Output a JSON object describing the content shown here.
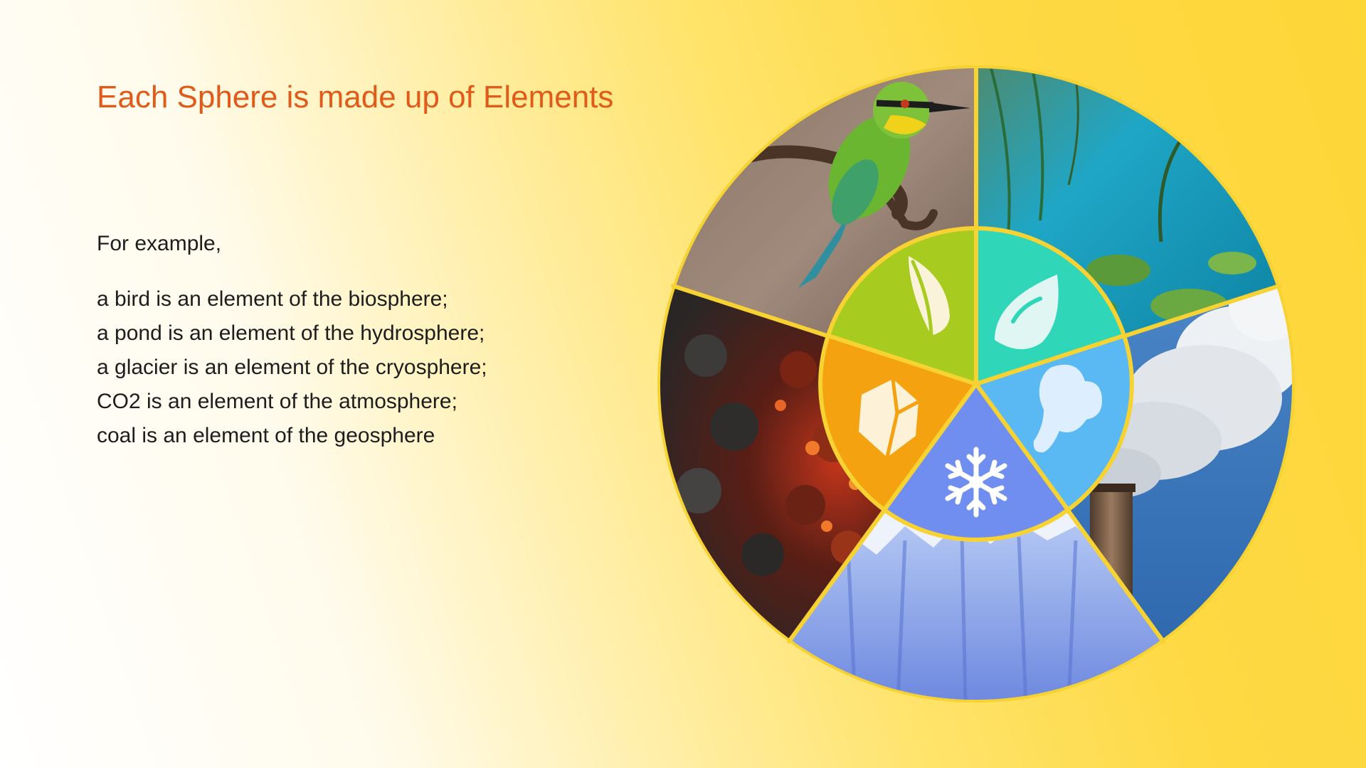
{
  "title": "Each Sphere is made up of Elements",
  "intro": "For example,",
  "examples": [
    "a bird is an element of the biosphere;",
    "a pond is an element of the hydrosphere;",
    "a glacier is an element of the cryosphere;",
    "CO2 is an element of the atmosphere;",
    "coal is an element of the geosphere"
  ],
  "colors": {
    "title": "#e05a1a",
    "background_start": "#ffffff",
    "background_end": "#fdd638",
    "divider": "#f7d233"
  },
  "spheres": [
    {
      "name": "biosphere",
      "icon": "leaf-icon",
      "photo": "bird-photo",
      "color": "#a7cb1f"
    },
    {
      "name": "hydrosphere",
      "icon": "water-drop-icon",
      "photo": "pond-photo",
      "color": "#2fd6b8"
    },
    {
      "name": "atmosphere",
      "icon": "cloud-icon",
      "photo": "smokestack-photo",
      "color": "#5ab9f2"
    },
    {
      "name": "cryosphere",
      "icon": "snowflake-icon",
      "photo": "glacier-photo",
      "color": "#6f8ef0"
    },
    {
      "name": "geosphere",
      "icon": "rock-icon",
      "photo": "coal-photo",
      "color": "#f4a20f"
    }
  ]
}
